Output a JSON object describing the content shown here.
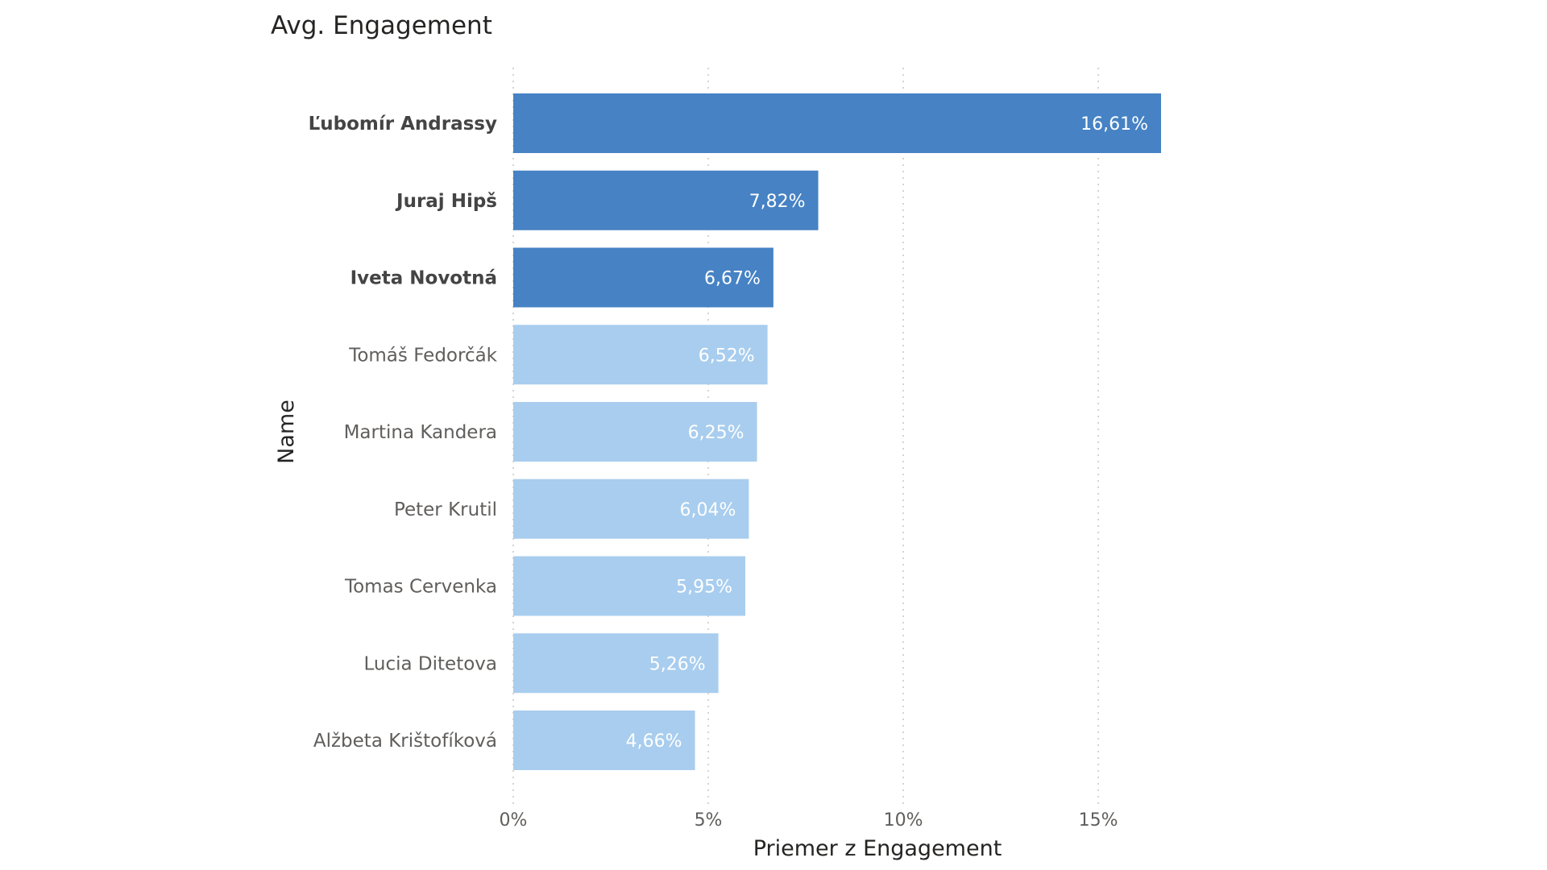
{
  "chart_data": {
    "type": "bar",
    "orientation": "horizontal",
    "title": "Avg. Engagement",
    "xlabel": "Priemer z Engagement",
    "ylabel": "Name",
    "xlim": [
      0,
      16.61
    ],
    "x_ticks": [
      {
        "value": 0,
        "label": "0%"
      },
      {
        "value": 5,
        "label": "5%"
      },
      {
        "value": 10,
        "label": "10%"
      },
      {
        "value": 15,
        "label": "15%"
      }
    ],
    "grid": "vertical dotted",
    "categories": [
      "Ľubomír Andrassy",
      "Juraj Hipš",
      "Iveta Novotná",
      "Tomáš Fedorčák",
      "Martina Kandera",
      "Peter Krutil",
      "Tomas Cervenka",
      "Lucia Ditetova",
      "Alžbeta Krištofíková"
    ],
    "values": [
      16.61,
      7.82,
      6.67,
      6.52,
      6.25,
      6.04,
      5.95,
      5.26,
      4.66
    ],
    "data_labels": [
      "16,61%",
      "7,82%",
      "6,67%",
      "6,52%",
      "6,25%",
      "6,04%",
      "5,95%",
      "5,26%",
      "4,66%"
    ],
    "highlighted": [
      true,
      true,
      true,
      false,
      false,
      false,
      false,
      false,
      false
    ],
    "colors": {
      "highlight": "#4682c4",
      "normal": "#a8cdee",
      "gridline": "#c8c6c4"
    }
  }
}
